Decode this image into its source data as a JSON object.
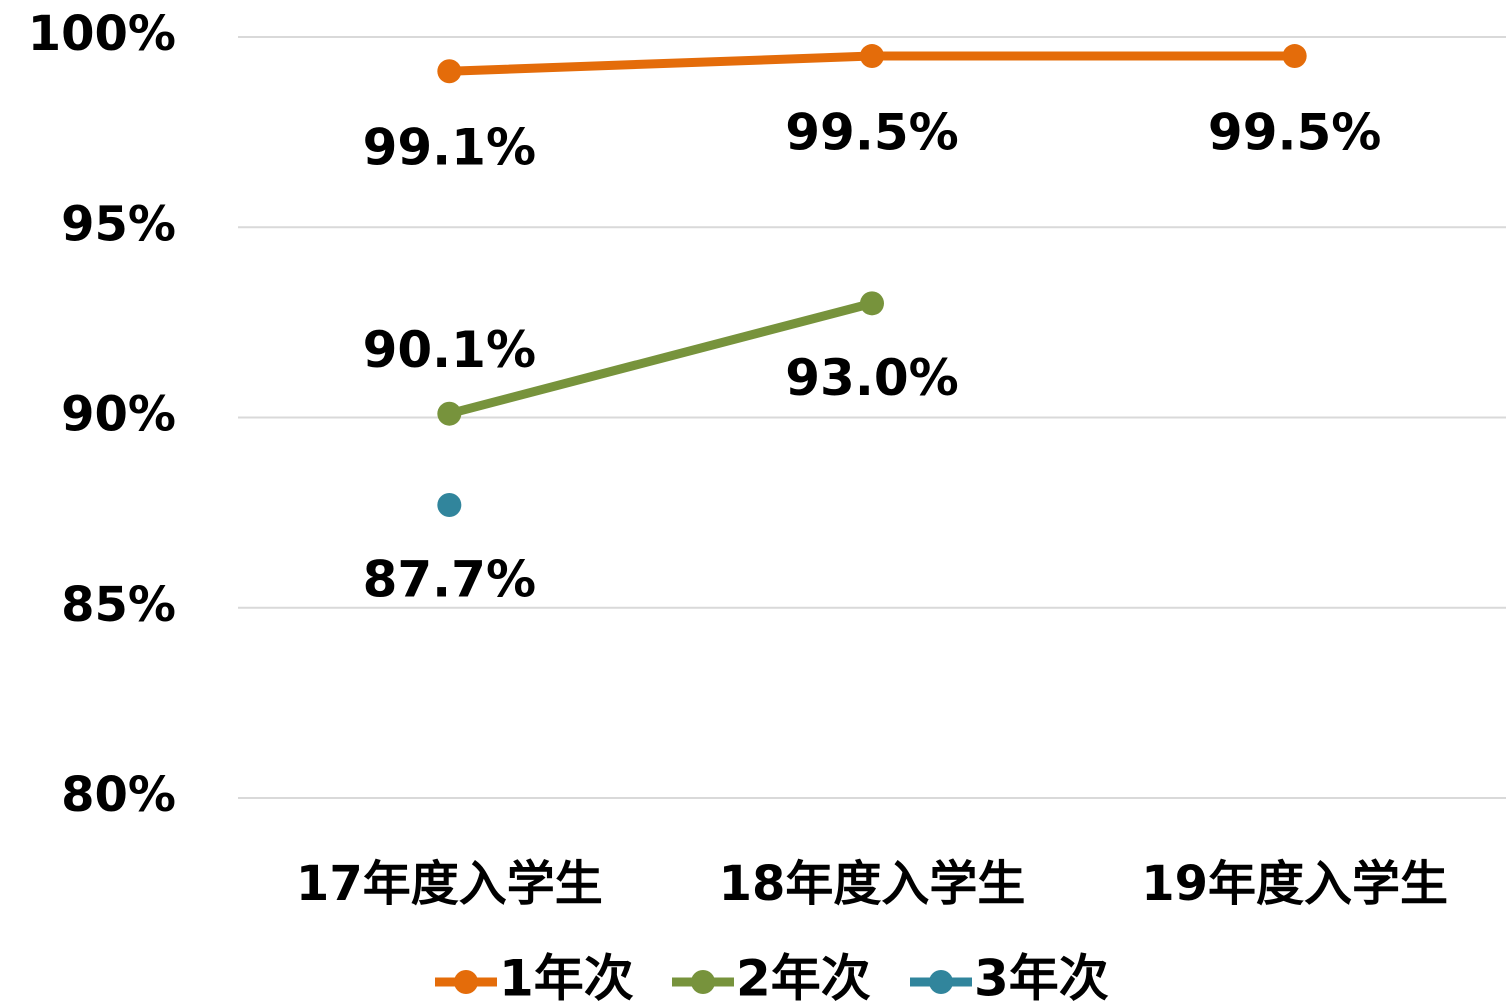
{
  "chart_data": {
    "type": "line",
    "categories": [
      "17年度入学生",
      "18年度入学生",
      "19年度入学生"
    ],
    "series": [
      {
        "name": "1年次",
        "color": "#e46c0a",
        "values": [
          99.1,
          99.5,
          99.5
        ],
        "value_labels": [
          "99.1%",
          "99.5%",
          "99.5%"
        ]
      },
      {
        "name": "2年次",
        "color": "#77933c",
        "values": [
          90.1,
          93.0,
          null
        ],
        "value_labels": [
          "90.1%",
          "93.0%",
          null
        ]
      },
      {
        "name": "3年次",
        "color": "#31859c",
        "values": [
          87.7,
          null,
          null
        ],
        "value_labels": [
          "87.7%",
          null,
          null
        ]
      }
    ],
    "ylim": [
      80,
      100
    ],
    "yticks": [
      {
        "value": 80,
        "label": "80%"
      },
      {
        "value": 85,
        "label": "85%"
      },
      {
        "value": 90,
        "label": "90%"
      },
      {
        "value": 95,
        "label": "95%"
      },
      {
        "value": 100,
        "label": "100%"
      }
    ],
    "grid": true,
    "legend": "bottom"
  }
}
